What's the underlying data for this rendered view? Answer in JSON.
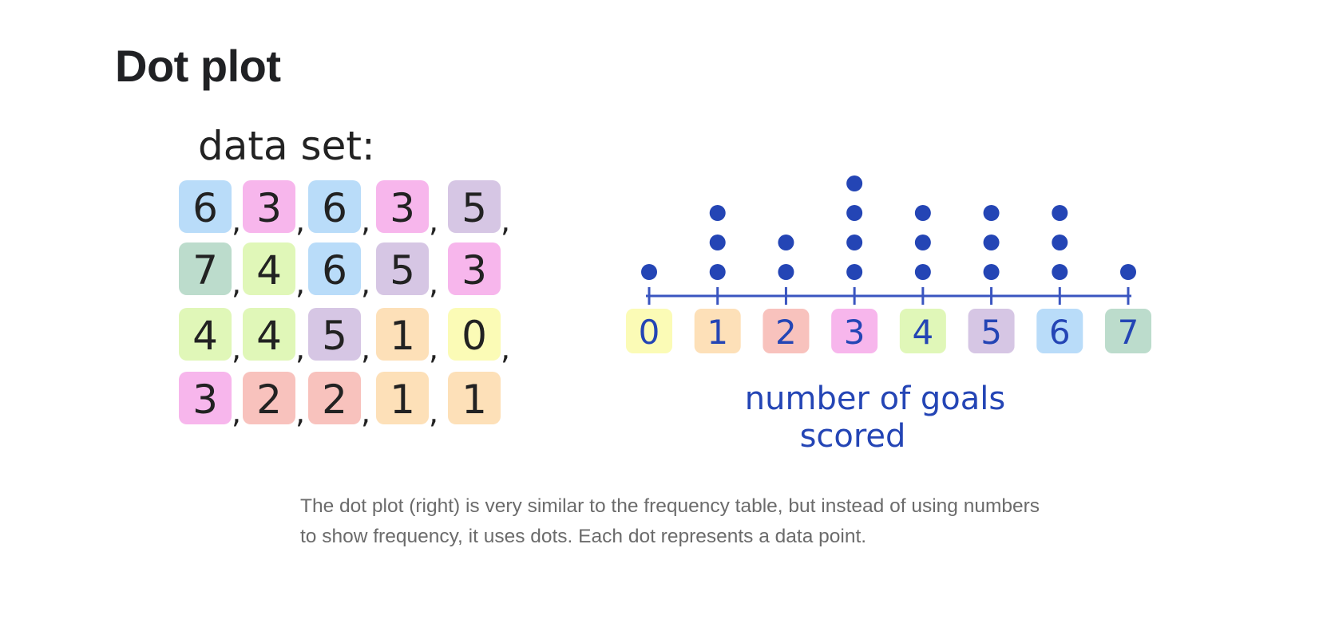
{
  "page": {
    "title": "Dot plot",
    "caption": "The dot plot (right) is very similar to the frequency table, but instead of using numbers to show frequency, it uses dots. Each dot represents a data point."
  },
  "colors": {
    "dot": "#2445b5",
    "axis": "#3a55c0",
    "ink": "#222222",
    "blue_box": "#b9dcf9",
    "pink_box": "#f7b6ec",
    "purple_box": "#d6c6e4",
    "green_box": "#bcdccc",
    "lime_box": "#e0f7b8",
    "peach_box": "#fde0b8",
    "salmon_box": "#f8c2bd",
    "yellow_box": "#fbfbb6"
  },
  "chart_data": [
    {
      "type": "table",
      "title": "data set:",
      "rows": [
        [
          "6",
          "3",
          "6",
          "3",
          "5"
        ],
        [
          "7",
          "4",
          "6",
          "5",
          "3"
        ],
        [
          "4",
          "4",
          "5",
          "1",
          "0"
        ],
        [
          "3",
          "2",
          "2",
          "1",
          "1"
        ]
      ],
      "separator": ","
    },
    {
      "type": "scatter",
      "subtype": "dot plot",
      "categories": [
        "0",
        "1",
        "2",
        "3",
        "4",
        "5",
        "6",
        "7"
      ],
      "values": [
        1,
        3,
        2,
        4,
        3,
        3,
        3,
        1
      ],
      "xlabel": "number of goals scored",
      "ylabel": "",
      "xlim": [
        0,
        7
      ],
      "grid": false
    }
  ]
}
